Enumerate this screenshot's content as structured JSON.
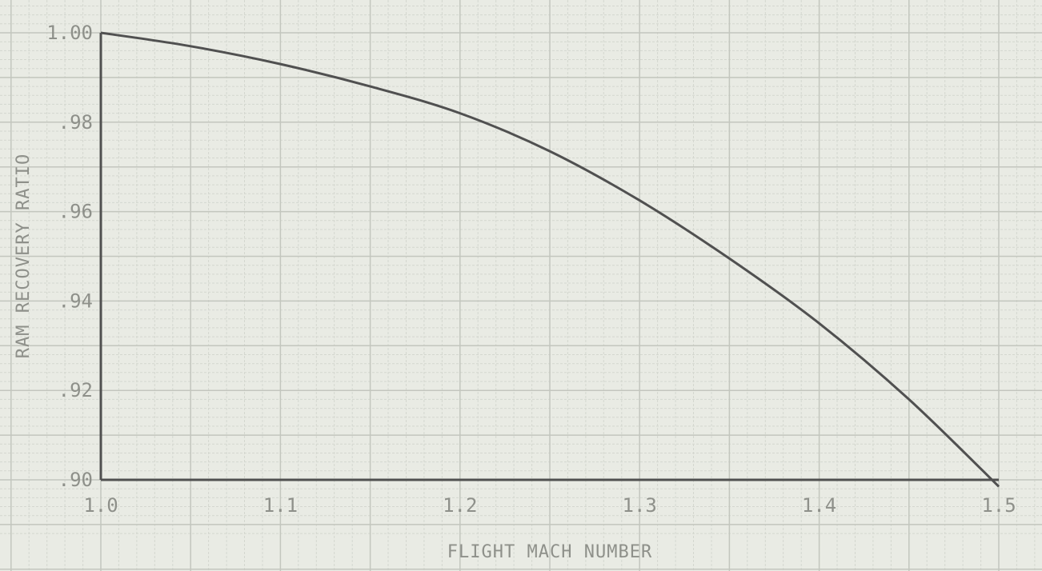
{
  "chart_data": {
    "type": "line",
    "title": "",
    "xlabel": "FLIGHT MACH NUMBER",
    "ylabel": "RAM RECOVERY RATIO",
    "xlim": [
      1.0,
      1.5
    ],
    "ylim": [
      0.9,
      1.0
    ],
    "xticks": [
      "1.0",
      "1.1",
      "1.2",
      "1.3",
      "1.4",
      "1.5"
    ],
    "yticks": [
      ".90",
      ".92",
      ".94",
      ".96",
      ".98",
      "1.00"
    ],
    "grid": true,
    "series": [
      {
        "x": [
          1.0,
          1.05,
          1.1,
          1.15,
          1.2,
          1.25,
          1.3,
          1.35,
          1.4,
          1.45,
          1.5
        ],
        "y": [
          1.0,
          0.997,
          0.993,
          0.988,
          0.982,
          0.9735,
          0.9625,
          0.9495,
          0.935,
          0.918,
          0.8985
        ]
      }
    ],
    "colors": {
      "background": "#e9ebe4",
      "grid_minor": "#d4d7cf",
      "grid_major": "#c3c6be",
      "axis": "#505050",
      "line": "#505050",
      "text": "#8e908a"
    }
  }
}
